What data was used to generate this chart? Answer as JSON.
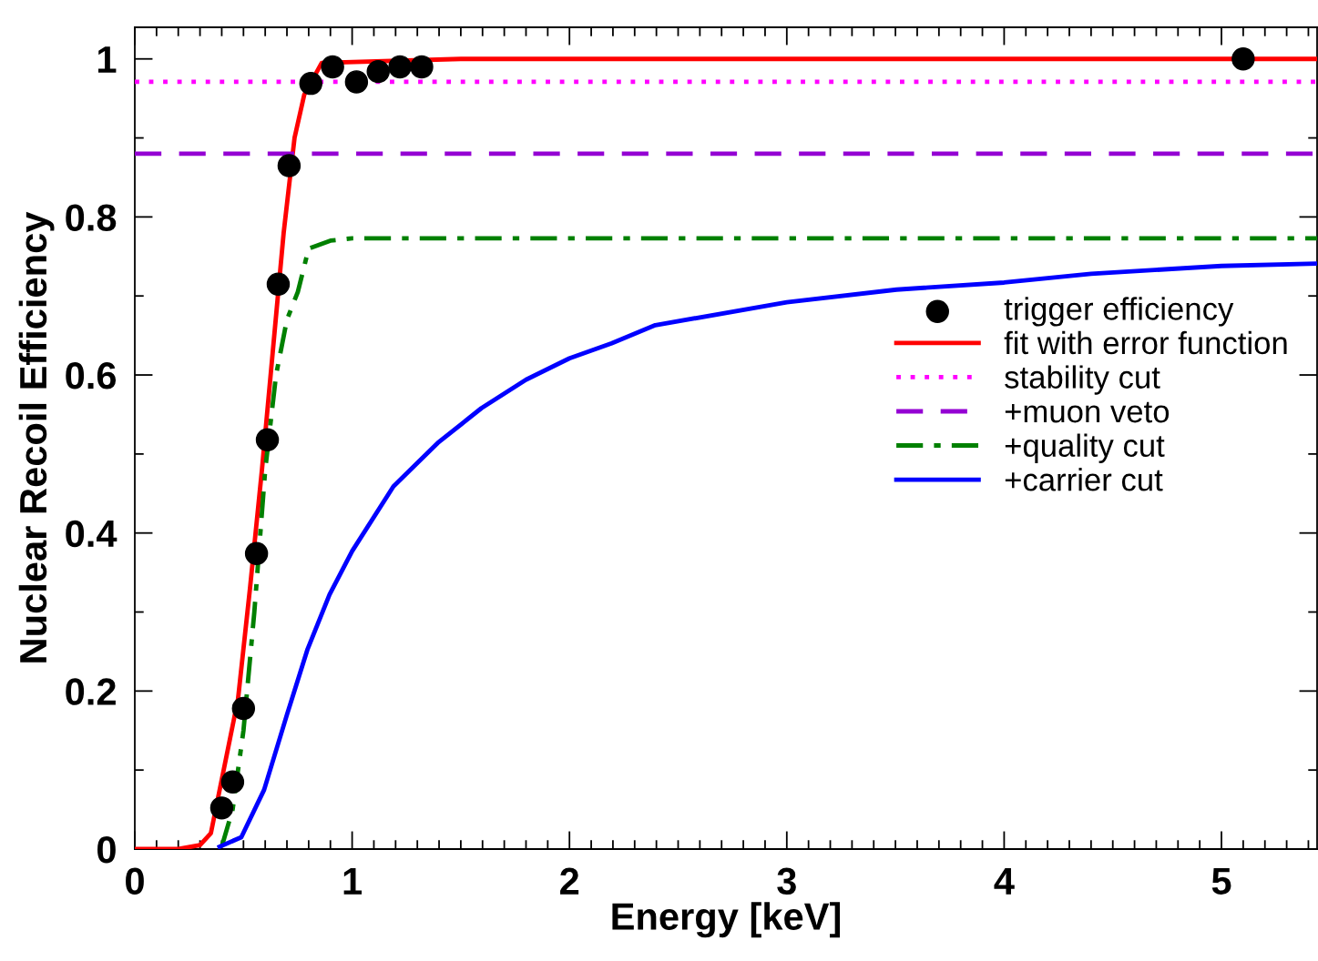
{
  "chart_data": {
    "type": "line",
    "xlabel": "Energy [keV]",
    "ylabel": "Nuclear Recoil Efficiency",
    "xlim": [
      0,
      5.44
    ],
    "ylim": [
      0,
      1.04
    ],
    "xticks": [
      0,
      1,
      2,
      3,
      4,
      5
    ],
    "yticks": [
      0,
      0.2,
      0.4,
      0.6,
      0.8,
      1
    ],
    "grid": false,
    "legend": "right",
    "series": [
      {
        "name": "trigger efficiency",
        "type": "scatter",
        "marker": "circle",
        "color": "#000000",
        "x": [
          0.4,
          0.45,
          0.5,
          0.56,
          0.61,
          0.66,
          0.71,
          0.81,
          0.91,
          1.02,
          1.12,
          1.22,
          1.32,
          5.1
        ],
        "values": [
          0.052,
          0.085,
          0.178,
          0.374,
          0.518,
          0.715,
          0.865,
          0.969,
          0.99,
          0.971,
          0.984,
          0.99,
          0.99,
          1.0
        ]
      },
      {
        "name": "fit with error function",
        "line_style": "solid",
        "color": "#ff0000",
        "x": [
          0,
          0.2,
          0.3,
          0.35,
          0.475,
          0.53,
          0.585,
          0.635,
          0.685,
          0.735,
          0.78,
          0.86,
          1.5,
          5.44
        ],
        "values": [
          0,
          0,
          0.005,
          0.02,
          0.19,
          0.33,
          0.48,
          0.63,
          0.78,
          0.9,
          0.955,
          0.995,
          1.0,
          1.0
        ]
      },
      {
        "name": "stability cut",
        "line_style": "dotted",
        "color": "#ff00ff",
        "x": [
          0,
          5.44
        ],
        "values": [
          0.971,
          0.971
        ]
      },
      {
        "name": "+muon veto",
        "line_style": "dashed",
        "color": "#9400d3",
        "x": [
          0,
          5.44
        ],
        "values": [
          0.88,
          0.88
        ]
      },
      {
        "name": "+quality cut",
        "line_style": "dashdot",
        "color": "#008000",
        "x": [
          0.4,
          0.45,
          0.5,
          0.55,
          0.6,
          0.65,
          0.7,
          0.75,
          0.8,
          0.9,
          1.0,
          5.44
        ],
        "values": [
          0.003,
          0.05,
          0.15,
          0.3,
          0.48,
          0.6,
          0.67,
          0.705,
          0.76,
          0.77,
          0.773,
          0.773
        ]
      },
      {
        "name": "+carrier cut",
        "line_style": "solid",
        "color": "#0000ff",
        "x": [
          0.39,
          0.49,
          0.595,
          0.7,
          0.795,
          0.896,
          1.0,
          1.19,
          1.394,
          1.595,
          1.8,
          2.0,
          2.194,
          2.395,
          3.0,
          3.505,
          4.0,
          4.4,
          5.0,
          5.44
        ],
        "values": [
          0.003,
          0.015,
          0.075,
          0.17,
          0.253,
          0.322,
          0.377,
          0.459,
          0.514,
          0.558,
          0.594,
          0.621,
          0.64,
          0.663,
          0.692,
          0.708,
          0.717,
          0.728,
          0.738,
          0.741
        ]
      }
    ]
  }
}
